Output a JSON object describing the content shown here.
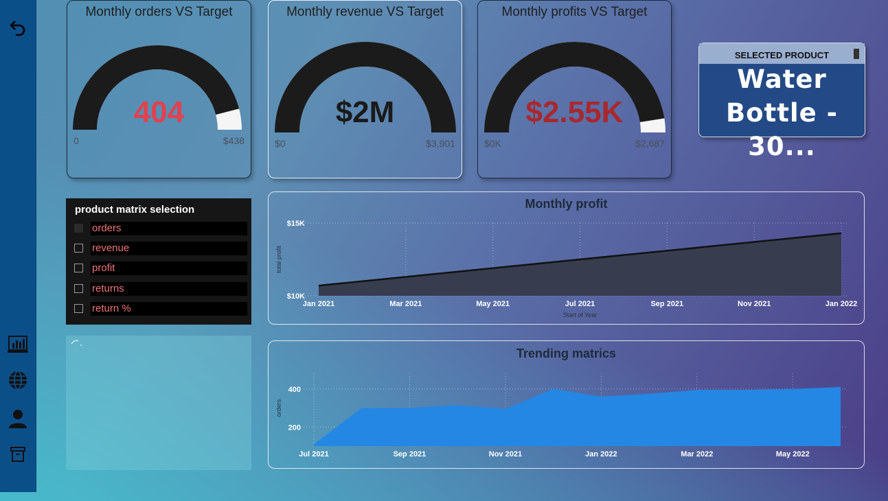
{
  "sidebar": {
    "icons": [
      "back-arrow-icon",
      "report-chart-icon",
      "globe-icon",
      "user-icon",
      "archive-icon"
    ]
  },
  "gauges": [
    {
      "title": "Monthly orders VS Target",
      "value": "404",
      "min": "0",
      "max": "$438",
      "fraction": 0.92,
      "value_color": "#e0424f"
    },
    {
      "title": "Monthly revenue VS Target",
      "value": "$2M",
      "min": "$0",
      "max": "$3,901",
      "fraction": 1.0,
      "value_color": "#1a1a1a"
    },
    {
      "title": "Monthly profits VS Target",
      "value": "$2.55K",
      "min": "$0K",
      "max": "$2,687",
      "fraction": 0.95,
      "value_color": "#a8282e"
    }
  ],
  "selected_product": {
    "header": "SELECTED PRODUCT",
    "line1": "Water",
    "line2": "Bottle - 30..."
  },
  "matrix": {
    "title": "product matrix selection",
    "items": [
      "orders",
      "revenue",
      "profit",
      "returns",
      "return %"
    ]
  },
  "colors": {
    "sidebar": "#0b4f89",
    "profit_area": "#373c4e",
    "trend_area": "#2487e4",
    "label_red": "#f07575"
  },
  "chart_data": [
    {
      "type": "area",
      "title": "Monthly profit",
      "xlabel": "Start of Year",
      "ylabel": "total profit",
      "x_ticks": [
        "Jan 2021",
        "Mar 2021",
        "May 2021",
        "Jul 2021",
        "Sep 2021",
        "Nov 2021",
        "Jan 2022"
      ],
      "y_ticks": [
        "$10K",
        "$15K"
      ],
      "ylim": [
        10000,
        15000
      ],
      "x": [
        "Jan 2021",
        "Jan 2022"
      ],
      "series": [
        {
          "values": [
            10700,
            14300
          ]
        }
      ],
      "grid": true
    },
    {
      "type": "area",
      "title": "Trending matrics",
      "xlabel": "",
      "ylabel": "orders",
      "x_ticks": [
        "Jul 2021",
        "Sep 2021",
        "Nov 2021",
        "Jan 2022",
        "Mar 2022",
        "May 2022"
      ],
      "y_ticks": [
        "200",
        "400"
      ],
      "ylim": [
        100,
        500
      ],
      "x": [
        "Jul 2021",
        "Aug 2021",
        "Sep 2021",
        "Oct 2021",
        "Nov 2021",
        "Dec 2021",
        "Jan 2022",
        "Feb 2022",
        "Mar 2022",
        "Apr 2022",
        "May 2022",
        "Jun 2022"
      ],
      "series": [
        {
          "values": [
            110,
            300,
            300,
            315,
            295,
            400,
            360,
            375,
            395,
            395,
            400,
            410
          ]
        }
      ],
      "grid": true
    }
  ]
}
